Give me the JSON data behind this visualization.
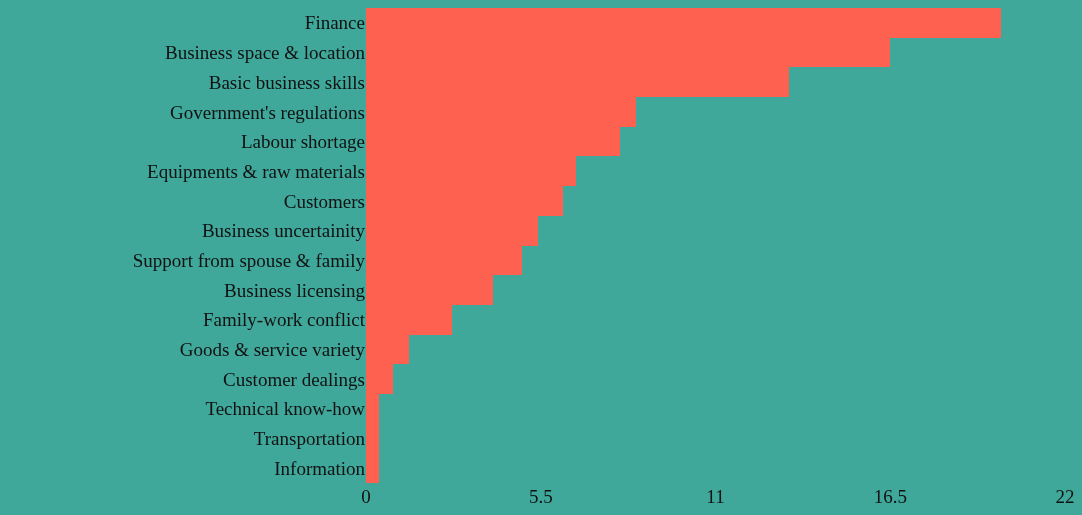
{
  "chart_data": {
    "type": "bar",
    "orientation": "horizontal",
    "categories": [
      "Finance",
      "Business space & location",
      "Basic business skills",
      "Government's regulations",
      "Labour shortage",
      "Equipments & raw materials",
      "Customers",
      "Business uncertainity",
      "Support from spouse & family",
      "Business licensing",
      "Family-work conflict",
      "Goods & service variety",
      "Customer dealings",
      "Technical know-how",
      "Transportation",
      "Information"
    ],
    "values": [
      20.0,
      16.5,
      13.3,
      8.5,
      8.0,
      6.6,
      6.2,
      5.4,
      4.9,
      4.0,
      2.7,
      1.35,
      0.85,
      0.4,
      0.4,
      0.4
    ],
    "color": "#ff6150",
    "xlim": [
      0,
      22
    ],
    "xticks": [
      0,
      5.5,
      11,
      16.5,
      22
    ],
    "grid": false,
    "legend": false
  }
}
